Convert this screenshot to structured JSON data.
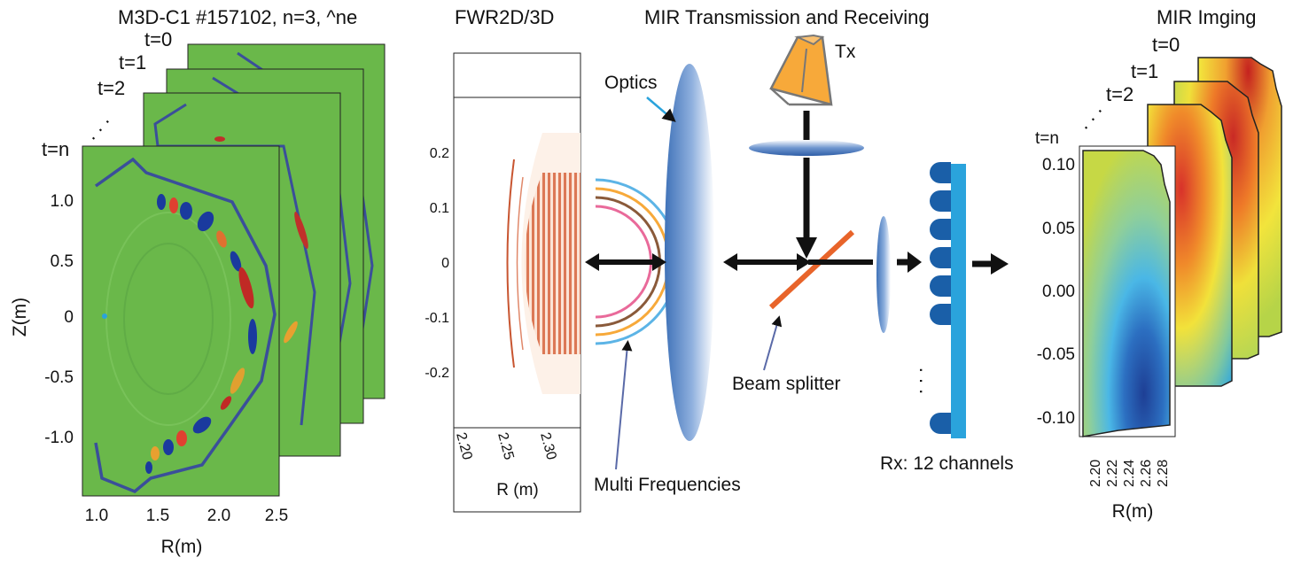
{
  "panels": {
    "m3d": {
      "title": "M3D-C1 #157102, n=3, ^ne",
      "frame_labels": [
        "t=0",
        "t=1",
        "t=2",
        "t=n"
      ],
      "dots": ". . .",
      "xlabel": "R(m)",
      "ylabel": "Z(m)",
      "xticks": [
        "1.0",
        "1.5",
        "2.0",
        "2.5"
      ],
      "yticks": [
        "1.0",
        "0.5",
        "0",
        "-0.5",
        "-1.0"
      ],
      "colors": {
        "background": "#6ab84a",
        "contour": "#3a4f9a"
      }
    },
    "fwr": {
      "title": "FWR2D/3D",
      "xlabel": "R (m)",
      "xticks": [
        "2.20",
        "2.25",
        "2.30"
      ],
      "yticks": [
        "0.2",
        "0.1",
        "0",
        "-0.1",
        "-0.2"
      ],
      "colors": {
        "wave": "#d0532c"
      }
    },
    "mir": {
      "title": "MIR Transmission and Receiving",
      "optics_label": "Optics",
      "tx_label": "Tx",
      "beam_splitter_label": "Beam splitter",
      "multi_freq_label": "Multi Frequencies",
      "rx_label": "Rx: 12 channels",
      "rx_dots": ". . .",
      "colors": {
        "lens": "#3f72b8",
        "splitter": "#e8642a",
        "horn": "#f7a93a",
        "rx": "#2aa3dc",
        "rx_dark": "#1a5fa8"
      }
    },
    "imaging": {
      "title": "MIR Imging",
      "frame_labels": [
        "t=0",
        "t=1",
        "t=2",
        "t=n"
      ],
      "dots": ". . .",
      "xlabel": "R(m)",
      "xticks": [
        "2.20",
        "2.22",
        "2.24",
        "2.26",
        "2.28"
      ],
      "yticks": [
        "0.10",
        "0.05",
        "0.00",
        "-0.05",
        "-0.10"
      ]
    }
  }
}
